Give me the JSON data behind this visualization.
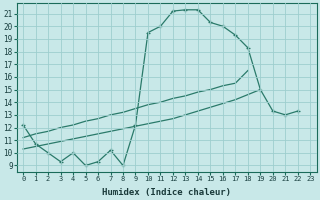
{
  "xlabel": "Humidex (Indice chaleur)",
  "bg_color": "#c8e8e8",
  "grid_color": "#9ecece",
  "line_color": "#2a7a6a",
  "xlim": [
    -0.5,
    23.5
  ],
  "ylim": [
    8.5,
    21.8
  ],
  "xticks": [
    0,
    1,
    2,
    3,
    4,
    5,
    6,
    7,
    8,
    9,
    10,
    11,
    12,
    13,
    14,
    15,
    16,
    17,
    18,
    19,
    20,
    21,
    22,
    23
  ],
  "yticks": [
    9,
    10,
    11,
    12,
    13,
    14,
    15,
    16,
    17,
    18,
    19,
    20,
    21
  ],
  "curve1_x": [
    0,
    1,
    2,
    3,
    4,
    5,
    6,
    7,
    8,
    9,
    10,
    11,
    12,
    13,
    14,
    15,
    16,
    17,
    18,
    19,
    20,
    21,
    22,
    23
  ],
  "curve1_y": [
    12.2,
    10.7,
    10.0,
    9.3,
    10.0,
    9.0,
    9.3,
    10.2,
    9.0,
    12.2,
    19.5,
    20.0,
    21.2,
    21.3,
    21.3,
    20.3,
    20.0,
    19.3,
    18.3,
    15.0,
    13.3,
    13.0,
    13.3,
    null
  ],
  "line2_x": [
    0,
    1,
    2,
    3,
    4,
    5,
    6,
    7,
    8,
    9,
    10,
    11,
    12,
    13,
    14,
    15,
    16,
    17,
    18,
    19,
    20,
    21,
    22,
    23
  ],
  "line2_y": [
    10.3,
    10.5,
    10.7,
    10.9,
    11.1,
    11.3,
    11.5,
    11.7,
    11.9,
    12.1,
    12.3,
    12.5,
    12.7,
    13.0,
    13.3,
    13.6,
    13.9,
    14.2,
    14.6,
    15.0,
    null,
    null,
    null,
    null
  ],
  "line3_x": [
    0,
    1,
    2,
    3,
    4,
    5,
    6,
    7,
    8,
    9,
    10,
    11,
    12,
    13,
    14,
    15,
    16,
    17,
    18,
    19,
    20,
    21,
    22,
    23
  ],
  "line3_y": [
    11.2,
    11.5,
    11.7,
    12.0,
    12.2,
    12.5,
    12.7,
    13.0,
    13.2,
    13.5,
    13.8,
    14.0,
    14.3,
    14.5,
    14.8,
    15.0,
    15.3,
    15.5,
    16.5,
    null,
    null,
    null,
    null,
    null
  ]
}
